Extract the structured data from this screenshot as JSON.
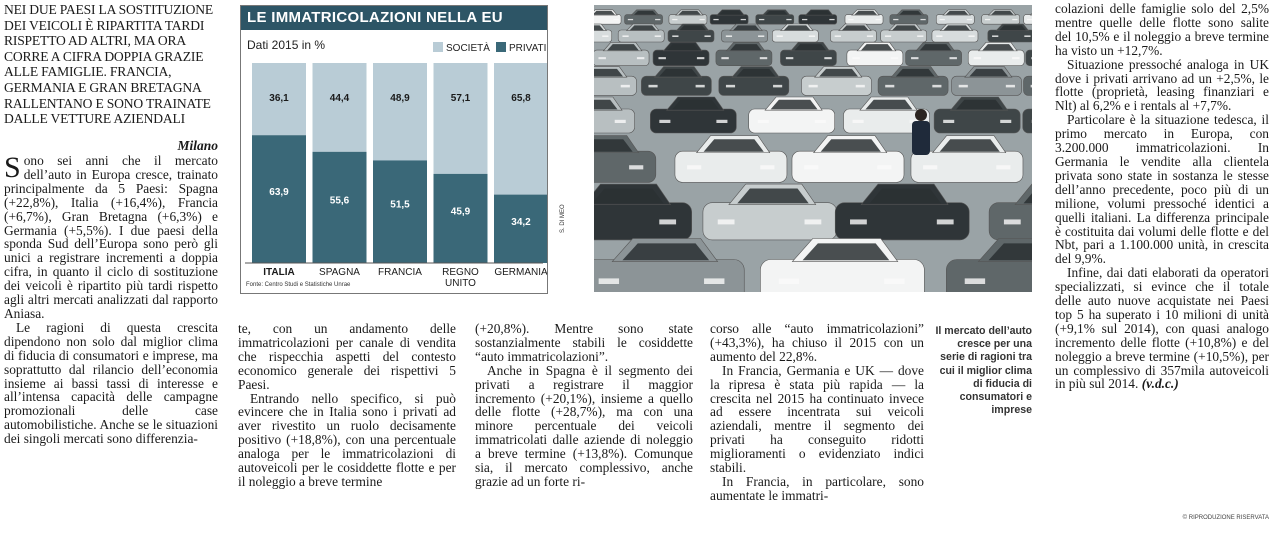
{
  "dek": "Nei due paesi la sostituzione dei veicoli è ripartita tardi rispetto ad altri, ma ora corre a cifra doppia grazie alle famiglie. Francia, Germania e Gran Bretagna rallentano e sono trainate dalle vetture aziendali",
  "byline": "Milano",
  "col1": {
    "dropcap": "S",
    "p1": "ono sei anni che il mercato dell’auto in Europa cresce, trainato principalmente da 5 Paesi: Spagna (+22,8%), Italia (+16,4%), Francia (+6,7%), Gran Bretagna (+6,3%) e Germania (+5,5%). I due paesi della sponda Sud dell’Europa sono però gli unici a registrare incrementi a doppia cifra, in quanto il ciclo di sostituzione dei veicoli è ripartito più tardi rispetto agli altri mercati analizzati dal rapporto Aniasa.",
    "p2": "Le ragioni di questa crescita dipendono non solo dal miglior clima di fiducia di consumatori e imprese, ma soprattutto dal rilancio dell’economia insieme ai bassi tassi di interesse e all’intensa capacità delle campagne promozionali delle case automobilistiche. Anche se le situazioni dei singoli mercati sono differenzia-"
  },
  "col2": {
    "p1": "te, con un andamento delle immatricolazioni per canale di vendita che rispecchia aspetti del contesto economico generale dei rispettivi 5 Paesi.",
    "p2": "Entrando nello specifico, si può evincere che in Italia sono i privati ad aver rivestito un ruolo decisamente positivo (+18,8%), con una percentuale analoga per le immatricolazioni di autoveicoli per le cosiddette flotte e per il noleggio a breve termine"
  },
  "col3": {
    "p1": "(+20,8%). Mentre sono state sostanzialmente stabili le cosiddette “auto immatricolazioni”.",
    "p2": "Anche in Spagna è il segmento dei privati a registrare il maggior incremento (+20,1%), insieme a quello delle flotte (+28,7%), ma con una minore percentuale dei veicoli immatricolati dalle aziende di noleggio a breve termine (+13,8%). Comunque sia, il mercato complessivo, anche grazie ad un forte ri-"
  },
  "col4": {
    "p1": "corso alle “auto immatricolazioni” (+43,3%), ha chiuso il 2015 con un aumento del 22,8%.",
    "p2": "In Francia, Germania e UK — dove la ripresa è stata più rapida — la crescita nel 2015 ha continuato invece ad essere incentrata sui veicoli aziendali, mentre il segmento dei privati ha conseguito ridotti miglioramenti o evidenziato indici stabili.",
    "p3": "In Francia, in particolare, sono aumentate le immatri-"
  },
  "col5": {
    "p1": "colazioni delle famiglie solo del 2,5% mentre quelle delle flotte sono salite del 10,5% e il noleggio a breve termine ha visto un +12,7%.",
    "p2": "Situazione pressoché analoga in UK dove i privati arrivano ad un +2,5%, le flotte (proprietà, leasing finanziari e Nlt) al 6,2% e i rentals al +7,7%.",
    "p3": "Particolare è la situazione tedesca, il primo mercato in Europa, con 3.200.000 immatricolazioni. In Germania le vendite alla clientela privata sono state in sostanza le stesse dell’anno precedente, poco più di un milione, volumi pressoché identici a quelli italiani. La differenza principale è costituita dai volumi delle flotte e del Nbt, pari a 1.100.000 unità, in crescita del 9,9%.",
    "p4": "Infine, dai dati elaborati da operatori specializzati, si evince che il totale delle auto nuove acquistate nei Paesi top 5 ha superato i 10 milioni di unità (+9,1% sul 2014), con quasi analogo incremento delle flotte (+10,8%) e del noleggio a breve termine (+10,5%), per un complessivo di 357mila autoveicoli in più sul 2014.",
    "signature": "(v.d.c.)"
  },
  "caption": "Il mercato dell’auto cresce per una serie di ragioni tra cui il miglior clima di fiducia di consumatori e imprese",
  "copyright": "© RIPRODUZIONE RISERVATA",
  "photo_credit": "S. DI MEO",
  "colors": {
    "chart_header": "#2d5566",
    "societa": "#b9ccd6",
    "privati": "#3a6878"
  },
  "chart_data": {
    "type": "bar",
    "stacked": true,
    "title": "LE IMMATRICOLAZIONI NELLA EU",
    "subtitle": "Dati 2015 in %",
    "categories": [
      "ITALIA",
      "SPAGNA",
      "FRANCIA",
      "REGNO UNITO",
      "GERMANIA"
    ],
    "series": [
      {
        "name": "SOCIETÀ",
        "values": [
          36.1,
          44.4,
          48.9,
          57.1,
          65.8
        ],
        "labels": [
          "36,1",
          "44,4",
          "48,9",
          "57,1",
          "65,8"
        ]
      },
      {
        "name": "PRIVATI",
        "values": [
          63.9,
          55.6,
          51.5,
          45.9,
          34.2
        ],
        "labels": [
          "63,9",
          "55,6",
          "51,5",
          "45,9",
          "34,2"
        ]
      }
    ],
    "ylim": [
      0,
      100
    ],
    "legend": "top-right",
    "source": "Fonte: Centro Studi e Statistiche Unrae"
  }
}
